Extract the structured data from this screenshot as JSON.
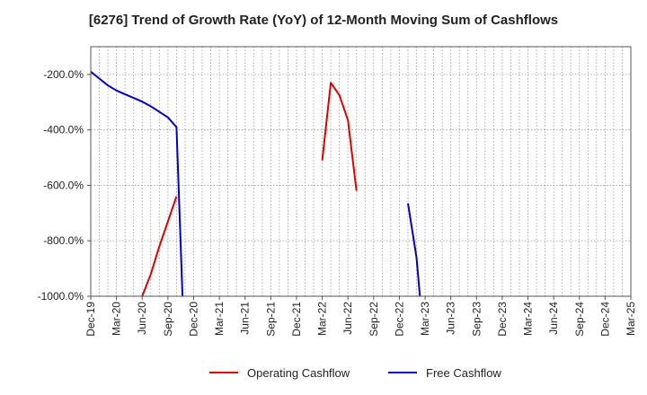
{
  "chart_data": {
    "type": "line",
    "title": "[6276]  Trend of Growth Rate (YoY) of 12-Month Moving Sum of Cashflows",
    "xlabel": "",
    "ylabel": "",
    "ylim": [
      -1000,
      0
    ],
    "y_ticks": [
      -200,
      -400,
      -600,
      -800,
      -1000
    ],
    "y_tick_labels": [
      "-200.0%",
      "-400.0%",
      "-600.0%",
      "-800.0%",
      "-1000.0%"
    ],
    "x_tick_labels": [
      "Dec-19",
      "Mar-20",
      "Jun-20",
      "Sep-20",
      "Dec-20",
      "Mar-21",
      "Jun-21",
      "Sep-21",
      "Dec-21",
      "Mar-22",
      "Jun-22",
      "Sep-22",
      "Dec-22",
      "Mar-23",
      "Jun-23",
      "Sep-23",
      "Dec-23",
      "Mar-24",
      "Jun-24",
      "Sep-24",
      "Dec-24",
      "Mar-25"
    ],
    "grid": true,
    "legend_position": "bottom",
    "series": [
      {
        "name": "Operating Cashflow",
        "color": "#e00000",
        "segments": [
          [
            [
              6,
              -1000
            ],
            [
              7,
              -920
            ],
            [
              8,
              -820
            ],
            [
              9,
              -730
            ],
            [
              10,
              -640
            ]
          ],
          [
            [
              27,
              -510
            ],
            [
              28,
              -230
            ],
            [
              29,
              -275
            ],
            [
              30,
              -365
            ],
            [
              31,
              -620
            ]
          ]
        ]
      },
      {
        "name": "Free Cashflow",
        "color": "#0000cc",
        "segments": [
          [
            [
              0,
              -190
            ],
            [
              1,
              -215
            ],
            [
              2,
              -240
            ],
            [
              3,
              -258
            ],
            [
              4,
              -272
            ],
            [
              5,
              -285
            ],
            [
              6,
              -298
            ],
            [
              7,
              -315
            ],
            [
              8,
              -335
            ],
            [
              9,
              -355
            ],
            [
              10,
              -390
            ],
            [
              10.7,
              -1000
            ]
          ],
          [
            [
              37,
              -665
            ],
            [
              38,
              -860
            ],
            [
              38.4,
              -1000
            ]
          ]
        ]
      }
    ]
  }
}
